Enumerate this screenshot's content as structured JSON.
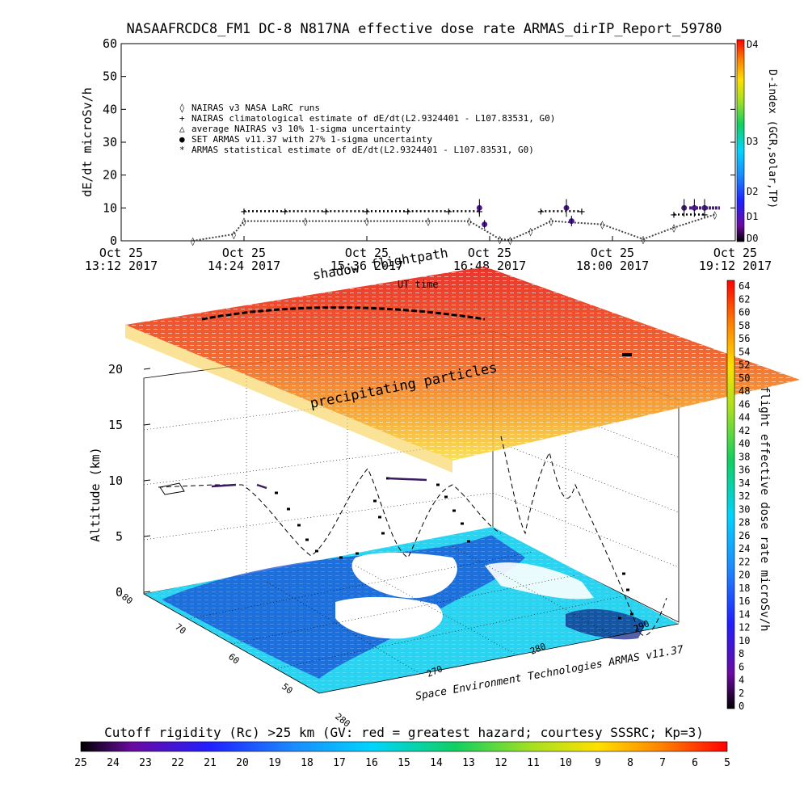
{
  "title": "NASAAFRCDC8_FM1 DC-8   N817NA effective dose rate ARMAS_dirIP_Report_59780",
  "chart_data": [
    {
      "type": "scatter",
      "ylabel": "dE/dt microSv/h",
      "ylim": [
        0,
        60
      ],
      "yticks": [
        "0",
        "10",
        "20",
        "30",
        "40",
        "50",
        "60"
      ],
      "xticks": [
        {
          "d": "Oct 25",
          "t": "13:12 2017"
        },
        {
          "d": "Oct 25",
          "t": "14:24 2017"
        },
        {
          "d": "Oct 25",
          "t": "15:36 2017"
        },
        {
          "d": "Oct 25",
          "t": "16:48 2017"
        },
        {
          "d": "Oct 25",
          "t": "18:00 2017"
        },
        {
          "d": "Oct 25",
          "t": "19:12 2017"
        }
      ],
      "legend": [
        {
          "symbol": "◊",
          "label": "NAIRAS v3 NASA LaRC runs"
        },
        {
          "symbol": "+",
          "label": "NAIRAS climatological estimate of dE/dt(L2.9324401 - L107.83531, G0)"
        },
        {
          "symbol": "△",
          "label": "average NAIRAS v3 10% 1-sigma uncertainty"
        },
        {
          "symbol": "●",
          "label": "SET ARMAS v11.37 with 27% 1-sigma uncertainty"
        },
        {
          "symbol": "*",
          "label": "ARMAS statistical estimate of dE/dt(L2.9324401 - L107.83531, G0)"
        }
      ],
      "series": [
        {
          "name": "NAIRAS climatological estimate",
          "x": [
            14.4,
            14.8,
            15.2,
            15.6,
            16.0,
            16.4,
            16.7,
            17.3,
            17.7,
            18.6,
            18.9
          ],
          "y": [
            9,
            9,
            9,
            9,
            9,
            9,
            9,
            9,
            9,
            8,
            8
          ]
        },
        {
          "name": "NAIRAS v3 NASA LaRC runs",
          "x": [
            13.9,
            14.3,
            14.4,
            15.0,
            15.6,
            16.2,
            16.6,
            16.9,
            17.0,
            17.2,
            17.4,
            17.9,
            18.3,
            18.6,
            19.0
          ],
          "y": [
            0,
            2,
            6,
            6,
            6,
            6,
            6,
            0.5,
            0.3,
            3,
            6,
            5,
            0.5,
            4,
            8
          ]
        },
        {
          "name": "SET ARMAS v11.37",
          "x": [
            16.7,
            16.75,
            17.55,
            17.6,
            18.7,
            18.8,
            18.9
          ],
          "y": [
            10,
            5,
            10,
            6,
            10,
            10,
            10
          ]
        }
      ],
      "colorbar": {
        "label": "D-index (GCR,solar,TP)",
        "ticks": [
          "D4",
          "D3",
          "D2",
          "D1",
          "D0"
        ]
      }
    },
    {
      "type": "surface3d",
      "zlabel": "Altitude (km)",
      "zticks": [
        "0",
        "5",
        "10",
        "15",
        "20"
      ],
      "lat_ticks": [
        "80",
        "70",
        "60",
        "50",
        "280"
      ],
      "lon_ticks": [
        "270",
        "280",
        "290"
      ],
      "labels": {
        "shadow": "shadow",
        "flightpath": "flightpath",
        "ut_time": "UT time",
        "particles": "precipitating particles",
        "credit": "Space Environment Technologies ARMAS v11.37"
      },
      "colorbar": {
        "label": "flight effective dose rate microSv/h",
        "ticks": [
          "0",
          "2",
          "4",
          "6",
          "8",
          "10",
          "12",
          "14",
          "16",
          "18",
          "20",
          "22",
          "24",
          "26",
          "28",
          "30",
          "32",
          "34",
          "36",
          "38",
          "40",
          "42",
          "44",
          "46",
          "48",
          "50",
          "52",
          "54",
          "56",
          "58",
          "60",
          "62",
          "64"
        ]
      }
    },
    {
      "type": "colorbar",
      "title": "Cutoff rigidity (Rc) >25 km (GV: red = greatest hazard; courtesy SSSRC; Kp=3)",
      "ticks": [
        "25",
        "24",
        "23",
        "22",
        "21",
        "20",
        "19",
        "18",
        "17",
        "16",
        "15",
        "14",
        "13",
        "12",
        "11",
        "10",
        "9",
        "8",
        "7",
        "6",
        "5"
      ]
    }
  ]
}
